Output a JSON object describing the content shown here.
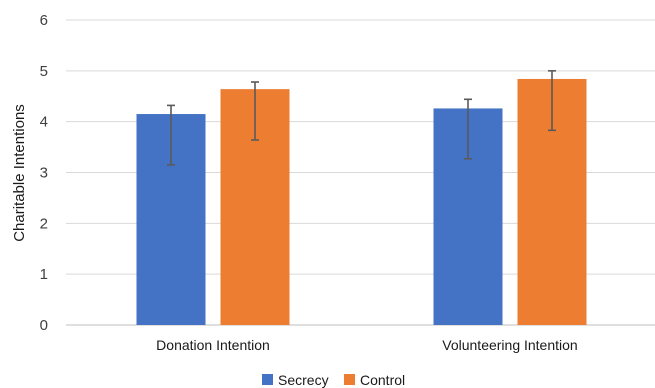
{
  "chart_data": {
    "type": "bar",
    "title": "",
    "xlabel": "",
    "ylabel": "Charitable Intentions",
    "ylim": [
      0,
      6
    ],
    "yticks": [
      0,
      1,
      2,
      3,
      4,
      5,
      6
    ],
    "grid": true,
    "legend_position": "bottom",
    "categories": [
      "Donation Intention",
      "Volunteering Intention"
    ],
    "series": [
      {
        "name": "Secrecy",
        "color": "#4472C4",
        "values": [
          4.15,
          4.26
        ],
        "error_upper": [
          4.32,
          4.44
        ],
        "error_lower": [
          3.15,
          3.27
        ]
      },
      {
        "name": "Control",
        "color": "#ED7D31",
        "values": [
          4.64,
          4.84
        ],
        "error_upper": [
          4.78,
          5.0
        ],
        "error_lower": [
          3.64,
          3.83
        ]
      }
    ]
  }
}
